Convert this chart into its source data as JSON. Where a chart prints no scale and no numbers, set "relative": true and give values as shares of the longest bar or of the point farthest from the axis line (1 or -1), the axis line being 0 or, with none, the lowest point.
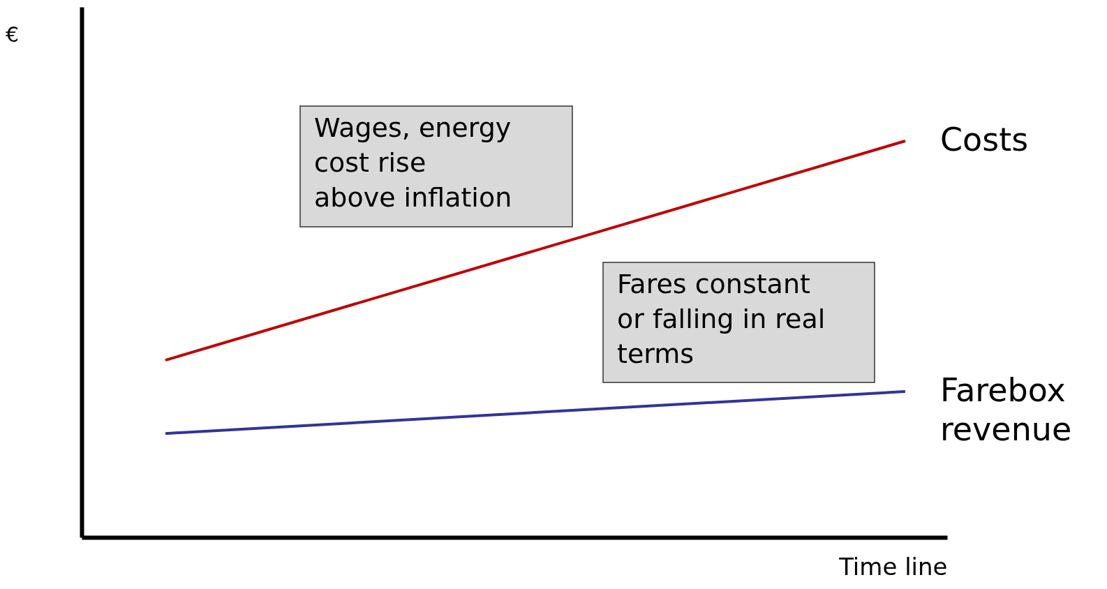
{
  "chart_data": {
    "type": "line",
    "relative": true,
    "xlabel": "Time line",
    "ylabel": "€",
    "categories": [
      null,
      null
    ],
    "series": [
      {
        "name": "Costs",
        "color": "#c00000",
        "values": [
          0.447,
          1
        ]
      },
      {
        "name": "Farebox revenue",
        "color": "#333399",
        "values": [
          0.262,
          0.368
        ]
      }
    ],
    "annotations": [
      "Wages, energy\ncost rise\nabove inflation",
      "Fares constant\nor falling in real\nterms"
    ],
    "marker": "none",
    "line_style": "solid"
  }
}
